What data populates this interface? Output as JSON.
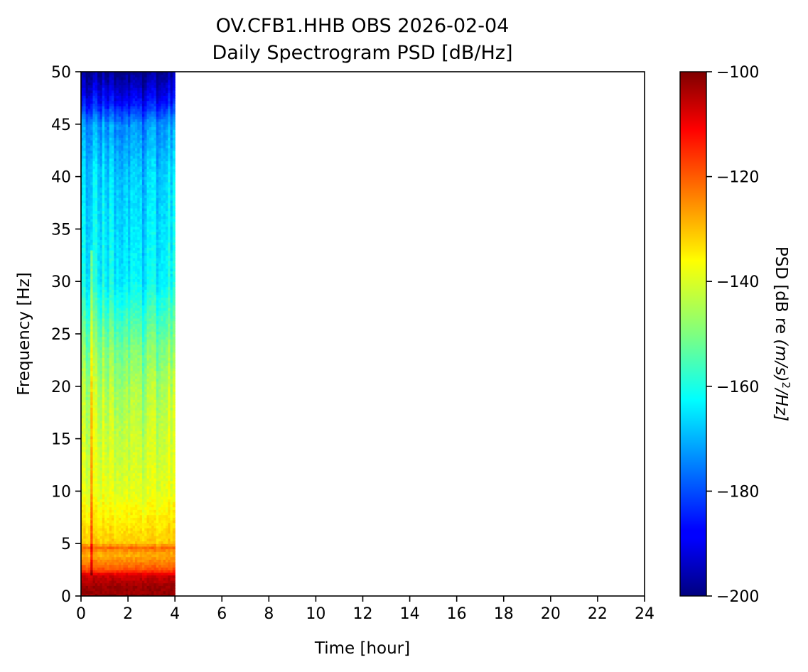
{
  "chart_data": {
    "type": "heatmap",
    "title": "OV.CFB1.HHB OBS 2026-02-04",
    "subtitle": "Daily Spectrogram PSD [dB/Hz]",
    "xlabel": "Time [hour]",
    "ylabel": "Frequency [Hz]",
    "colorbar_label": "PSD [dB re (m/s)²/Hz]",
    "colorbar_label_parts": {
      "pre": "PSD [dB re ",
      "var": "(m/s)",
      "sup": "2",
      "post": "/Hz]"
    },
    "colormap": "jet",
    "xlim": [
      0,
      24
    ],
    "ylim": [
      0,
      50
    ],
    "clim": [
      -200,
      -100
    ],
    "xticks": [
      0,
      2,
      4,
      6,
      8,
      10,
      12,
      14,
      16,
      18,
      20,
      22,
      24
    ],
    "yticks": [
      0,
      5,
      10,
      15,
      20,
      25,
      30,
      35,
      40,
      45,
      50
    ],
    "cticks": [
      -100,
      -120,
      -140,
      -160,
      -180,
      -200
    ],
    "data_extent_hours": [
      0,
      4
    ],
    "psd_profile": {
      "freq_hz": [
        0,
        1,
        2,
        2.5,
        4,
        4.7,
        5,
        7,
        10,
        15,
        20,
        24,
        28,
        30,
        35,
        40,
        45,
        47,
        50
      ],
      "psd_db": [
        -102,
        -103,
        -108,
        -120,
        -130,
        -122,
        -132,
        -135,
        -140,
        -142,
        -145,
        -150,
        -158,
        -162,
        -164,
        -166,
        -172,
        -185,
        -198
      ]
    }
  }
}
